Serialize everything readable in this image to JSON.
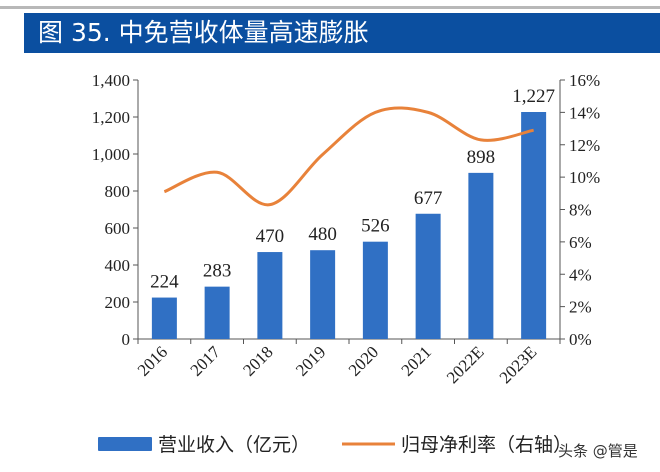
{
  "title": "图 35. 中免营收体量高速膨胀",
  "chart_data": {
    "type": "bar+line",
    "categories": [
      "2016",
      "2017",
      "2018",
      "2019",
      "2020",
      "2021",
      "2022E",
      "2023E"
    ],
    "series": [
      {
        "name": "营业收入（亿元）",
        "type": "bar",
        "axis": "left",
        "color": "#3070c4",
        "values": [
          224,
          283,
          470,
          480,
          526,
          677,
          898,
          1227
        ]
      },
      {
        "name": "归母净利率（右轴）",
        "type": "line",
        "axis": "right",
        "color": "#e8823a",
        "values": [
          9.1,
          10.3,
          8.3,
          11.4,
          14.0,
          14.0,
          12.3,
          12.9
        ]
      }
    ],
    "data_labels": [
      "224",
      "283",
      "470",
      "480",
      "526",
      "677",
      "898",
      "1,227"
    ],
    "y_left": {
      "range": [
        0,
        1400
      ],
      "ticks": [
        "0",
        "200",
        "400",
        "600",
        "800",
        "1,000",
        "1,200",
        "1,400"
      ]
    },
    "y_right": {
      "range": [
        0,
        16
      ],
      "ticks": [
        "0%",
        "2%",
        "4%",
        "6%",
        "8%",
        "10%",
        "12%",
        "14%",
        "16%"
      ]
    },
    "grid": false,
    "legend": "bottom"
  },
  "watermark": "头条 @管是"
}
